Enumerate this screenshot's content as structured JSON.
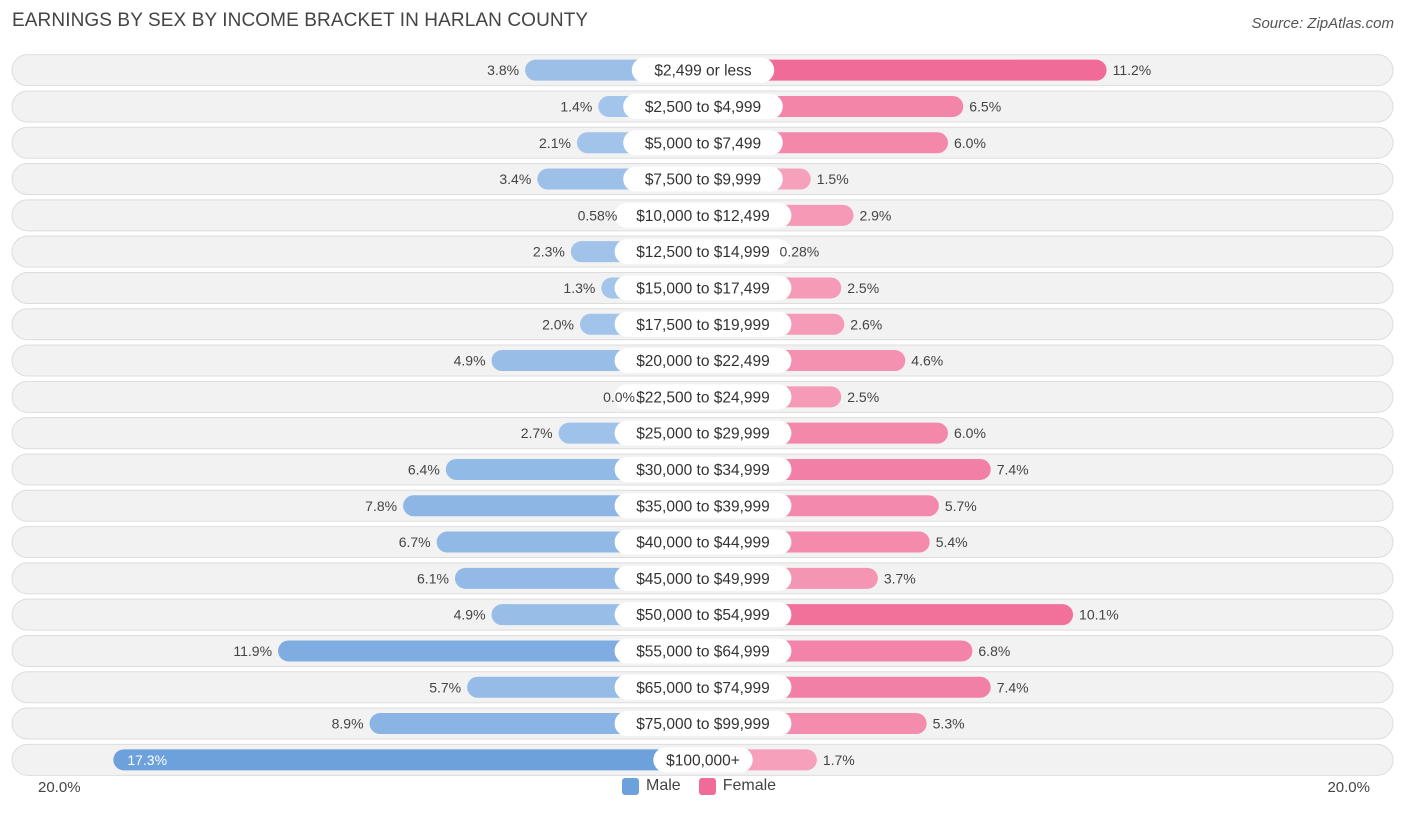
{
  "header": {
    "title": "EARNINGS BY SEX BY INCOME BRACKET IN HARLAN COUNTY",
    "source": "Source: ZipAtlas.com"
  },
  "axis": {
    "left_label": "20.0%",
    "right_label": "20.0%"
  },
  "legend": {
    "male_label": "Male",
    "female_label": "Female"
  },
  "colors": {
    "male_strong": "#6ca1dc",
    "male_light": "#a9c8ec",
    "female_strong": "#f06b97",
    "female_light": "#f7a9c2",
    "row_bg": "#f2f2f2",
    "row_border": "#dddddd"
  },
  "chart_data": {
    "type": "bar",
    "orientation": "horizontal-diverging",
    "title": "EARNINGS BY SEX BY INCOME BRACKET IN HARLAN COUNTY",
    "xlim": [
      -20,
      20
    ],
    "categories": [
      "$2,499 or less",
      "$2,500 to $4,999",
      "$5,000 to $7,499",
      "$7,500 to $9,999",
      "$10,000 to $12,499",
      "$12,500 to $14,999",
      "$15,000 to $17,499",
      "$17,500 to $19,999",
      "$20,000 to $22,499",
      "$22,500 to $24,999",
      "$25,000 to $29,999",
      "$30,000 to $34,999",
      "$35,000 to $39,999",
      "$40,000 to $44,999",
      "$45,000 to $49,999",
      "$50,000 to $54,999",
      "$55,000 to $64,999",
      "$65,000 to $74,999",
      "$75,000 to $99,999",
      "$100,000+"
    ],
    "series": [
      {
        "name": "Male",
        "values": [
          3.8,
          1.4,
          2.1,
          3.4,
          0.58,
          2.3,
          1.3,
          2.0,
          4.9,
          0.0,
          2.7,
          6.4,
          7.8,
          6.7,
          6.1,
          4.9,
          11.9,
          5.7,
          8.9,
          17.3
        ],
        "labels": [
          "3.8%",
          "1.4%",
          "2.1%",
          "3.4%",
          "0.58%",
          "2.3%",
          "1.3%",
          "2.0%",
          "4.9%",
          "0.0%",
          "2.7%",
          "6.4%",
          "7.8%",
          "6.7%",
          "6.1%",
          "4.9%",
          "11.9%",
          "5.7%",
          "8.9%",
          "17.3%"
        ]
      },
      {
        "name": "Female",
        "values": [
          11.2,
          6.5,
          6.0,
          1.5,
          2.9,
          0.28,
          2.5,
          2.6,
          4.6,
          2.5,
          6.0,
          7.4,
          5.7,
          5.4,
          3.7,
          10.1,
          6.8,
          7.4,
          5.3,
          1.7
        ],
        "labels": [
          "11.2%",
          "6.5%",
          "6.0%",
          "1.5%",
          "2.9%",
          "0.28%",
          "2.5%",
          "2.6%",
          "4.6%",
          "2.5%",
          "6.0%",
          "7.4%",
          "5.7%",
          "5.4%",
          "3.7%",
          "10.1%",
          "6.8%",
          "7.4%",
          "5.3%",
          "1.7%"
        ]
      }
    ],
    "legend": [
      "Male",
      "Female"
    ]
  }
}
